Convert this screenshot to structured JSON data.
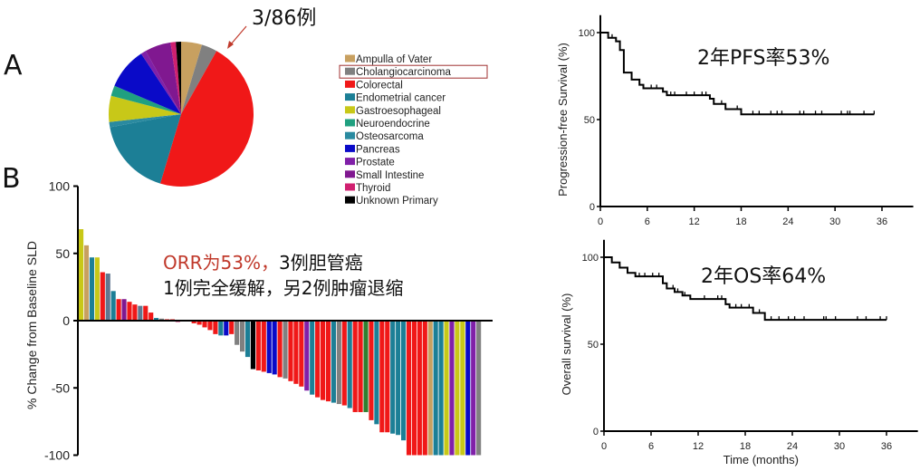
{
  "panel_labels": {
    "a": "A",
    "b": "B"
  },
  "annotations": {
    "pie_callout": "3/86例",
    "orr_red": "ORR为53%，",
    "orr_black": "3例胆管癌",
    "orr_line2": "1例完全缓解，另2例肿瘤退缩",
    "pfs_note": "2年PFS率53%",
    "os_note": "2年OS率64%",
    "highlight_color": "#c0392b"
  },
  "chart_data": [
    {
      "type": "pie",
      "legend_position": "right",
      "highlighted_entry": "Cholangiocarcinoma",
      "slices": [
        {
          "name": "Ampulla of Vater",
          "value": 4,
          "color": "#c8a060"
        },
        {
          "name": "Cholangiocarcinoma",
          "value": 3,
          "color": "#808080"
        },
        {
          "name": "Colorectal",
          "value": 40,
          "color": "#f01818"
        },
        {
          "name": "Endometrial cancer",
          "value": 15,
          "color": "#1c7f96"
        },
        {
          "name": "Osteosarcoma",
          "value": 1,
          "color": "#2a8aa0"
        },
        {
          "name": "Gastroesophageal",
          "value": 5,
          "color": "#c8c818"
        },
        {
          "name": "Neuroendocrine",
          "value": 2,
          "color": "#20a080"
        },
        {
          "name": "Pancreas",
          "value": 8,
          "color": "#0a0ac8"
        },
        {
          "name": "Prostate",
          "value": 1,
          "color": "#8020a8"
        },
        {
          "name": "Small Intestine",
          "value": 5,
          "color": "#801890"
        },
        {
          "name": "Thyroid",
          "value": 1,
          "color": "#d02070"
        },
        {
          "name": "Unknown Primary",
          "value": 1,
          "color": "#000000"
        }
      ],
      "legend_order": [
        "Ampulla of Vater",
        "Cholangiocarcinoma",
        "Colorectal",
        "Endometrial cancer",
        "Gastroesophageal",
        "Neuroendocrine",
        "Osteosarcoma",
        "Pancreas",
        "Prostate",
        "Small Intestine",
        "Thyroid",
        "Unknown Primary"
      ]
    },
    {
      "type": "bar",
      "ylabel": "% Change from Baseline SLD",
      "ylim": [
        -100,
        100
      ],
      "yticks": [
        100,
        50,
        0,
        -50,
        -100
      ],
      "values": [
        68,
        56,
        47,
        47,
        36,
        35,
        22,
        16,
        16,
        14,
        12,
        11,
        11,
        6,
        2,
        1.5,
        1,
        1,
        -1,
        -0.5,
        -0.5,
        -2,
        -3,
        -5,
        -7,
        -10,
        -11,
        -11,
        -10,
        -18,
        -23,
        -27,
        -36,
        -37,
        -38,
        -39,
        -40,
        -42,
        -43,
        -45,
        -47,
        -49,
        -52,
        -55,
        -57,
        -59,
        -60,
        -61,
        -62,
        -63,
        -65,
        -68,
        -68,
        -68,
        -74,
        -77,
        -83,
        -83,
        -84,
        -85,
        -89,
        -100,
        -100,
        -100,
        -100,
        -100,
        -100,
        -100,
        -100,
        -100,
        -100,
        -100,
        -100,
        -100,
        -100
      ],
      "colors": [
        "#c8c818",
        "#c8a060",
        "#1c7f96",
        "#c8c818",
        "#f01818",
        "#607890",
        "#1c7f96",
        "#f01818",
        "#801890",
        "#f01818",
        "#f01818",
        "#607890",
        "#f01818",
        "#f01818",
        "#1c7f96",
        "#808080",
        "#f01818",
        "#f01818",
        "#d02070",
        "#808080",
        "#808080",
        "#f01818",
        "#f01818",
        "#f01818",
        "#f01818",
        "#f01818",
        "#1c7f96",
        "#0a0ac8",
        "#f01818",
        "#808080",
        "#808080",
        "#1c7f96",
        "#000000",
        "#f01818",
        "#f01818",
        "#0a0ac8",
        "#0a0ac8",
        "#f01818",
        "#808080",
        "#f01818",
        "#f01818",
        "#f01818",
        "#8020a8",
        "#1c7f96",
        "#f01818",
        "#f01818",
        "#f01818",
        "#1c7f96",
        "#808080",
        "#f01818",
        "#1c7f96",
        "#f01818",
        "#f01818",
        "#308030",
        "#f01818",
        "#1c7f96",
        "#f01818",
        "#f01818",
        "#1c7f96",
        "#1c7f96",
        "#1c7f96",
        "#f01818",
        "#f01818",
        "#f01818",
        "#f01818",
        "#c8a060",
        "#1c7f96",
        "#1c7f96",
        "#c8c818",
        "#8020a8",
        "#c8c818",
        "#c8c818",
        "#0a0ac8",
        "#8020a8",
        "#808080"
      ]
    },
    {
      "type": "line",
      "ylabel": "Progression-free Survival (%)",
      "xlabel": "",
      "xlim": [
        0,
        40
      ],
      "ylim": [
        0,
        110
      ],
      "xticks": [
        0,
        6,
        12,
        18,
        24,
        30,
        36
      ],
      "yticks": [
        0,
        50,
        100
      ],
      "steps": [
        [
          0,
          100
        ],
        [
          1,
          97
        ],
        [
          2,
          95
        ],
        [
          2.5,
          90
        ],
        [
          3,
          77
        ],
        [
          4,
          73
        ],
        [
          5,
          70
        ],
        [
          5.5,
          68
        ],
        [
          8,
          66
        ],
        [
          8.5,
          64
        ],
        [
          14,
          62
        ],
        [
          14.5,
          59
        ],
        [
          16,
          56
        ],
        [
          18,
          53
        ],
        [
          35,
          53
        ]
      ],
      "censored": [
        1.5,
        6.5,
        7.2,
        9,
        9.5,
        11,
        12,
        13,
        13.5,
        15.5,
        17.5,
        19.5,
        20.3,
        21.8,
        22.6,
        23.2,
        25.5,
        26,
        27.5,
        28.3,
        30.8,
        31.6,
        31.9,
        33.7,
        35
      ]
    },
    {
      "type": "line",
      "ylabel": "Overall survival (%)",
      "xlabel": "Time (months)",
      "xlim": [
        0,
        40
      ],
      "ylim": [
        0,
        110
      ],
      "xticks": [
        0,
        6,
        12,
        18,
        24,
        30,
        36
      ],
      "yticks": [
        0,
        50,
        100
      ],
      "steps": [
        [
          0,
          100
        ],
        [
          1,
          97
        ],
        [
          2,
          94
        ],
        [
          3,
          91
        ],
        [
          4,
          89
        ],
        [
          7.5,
          85
        ],
        [
          8,
          82
        ],
        [
          9,
          80
        ],
        [
          10,
          78
        ],
        [
          11,
          76
        ],
        [
          15.5,
          73
        ],
        [
          16,
          71
        ],
        [
          19,
          68
        ],
        [
          20.5,
          64
        ],
        [
          36,
          64
        ]
      ],
      "censored": [
        3,
        4.5,
        5.2,
        6.2,
        7,
        8.8,
        9.4,
        10.3,
        12.8,
        14.5,
        15,
        16.8,
        17.5,
        18.5,
        19.8,
        21.3,
        22.3,
        23.5,
        24.3,
        25.5,
        28,
        28.3,
        29.5,
        32.3,
        33.4,
        35.2,
        36
      ]
    }
  ]
}
